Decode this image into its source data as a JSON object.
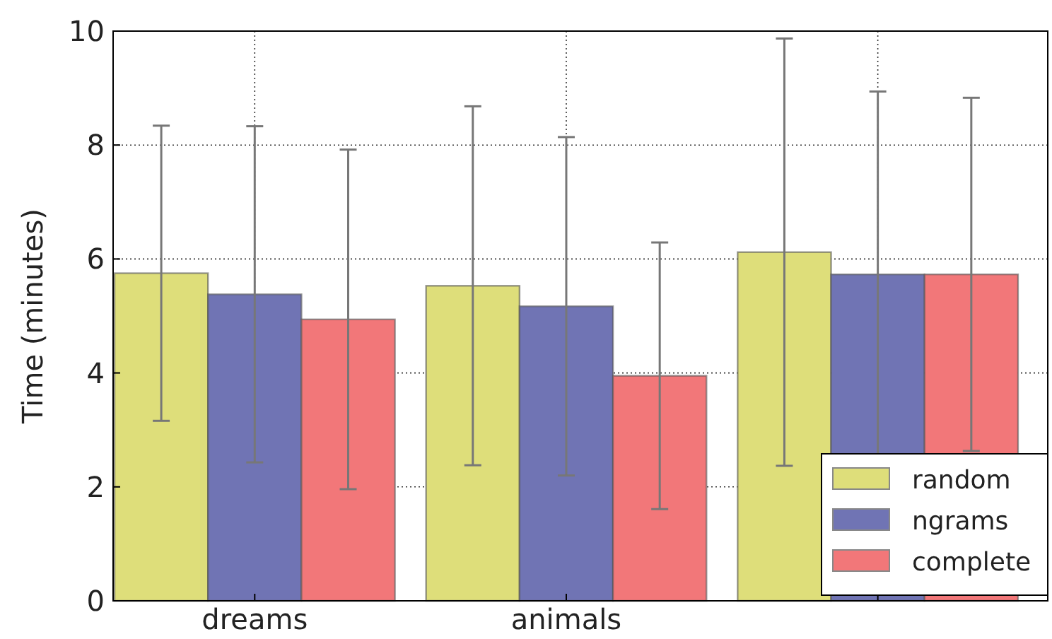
{
  "chart_data": {
    "type": "bar",
    "ylabel": "Time (minutes)",
    "categories": [
      "dreams",
      "animals",
      null
    ],
    "series": [
      {
        "name": "random",
        "color": "#dede7a",
        "values": [
          5.75,
          5.53,
          6.12
        ],
        "errors": [
          2.59,
          3.15,
          3.75
        ]
      },
      {
        "name": "ngrams",
        "color": "#7074b4",
        "values": [
          5.38,
          5.17,
          5.73
        ],
        "errors": [
          2.95,
          2.97,
          3.21
        ]
      },
      {
        "name": "complete",
        "color": "#f27779",
        "values": [
          4.94,
          3.95,
          5.73
        ],
        "errors": [
          2.98,
          2.34,
          3.1
        ]
      }
    ],
    "ylim": [
      0,
      10
    ],
    "yticks": [
      0,
      2,
      4,
      6,
      8,
      10
    ],
    "grid": true,
    "legend": "bottom right"
  }
}
